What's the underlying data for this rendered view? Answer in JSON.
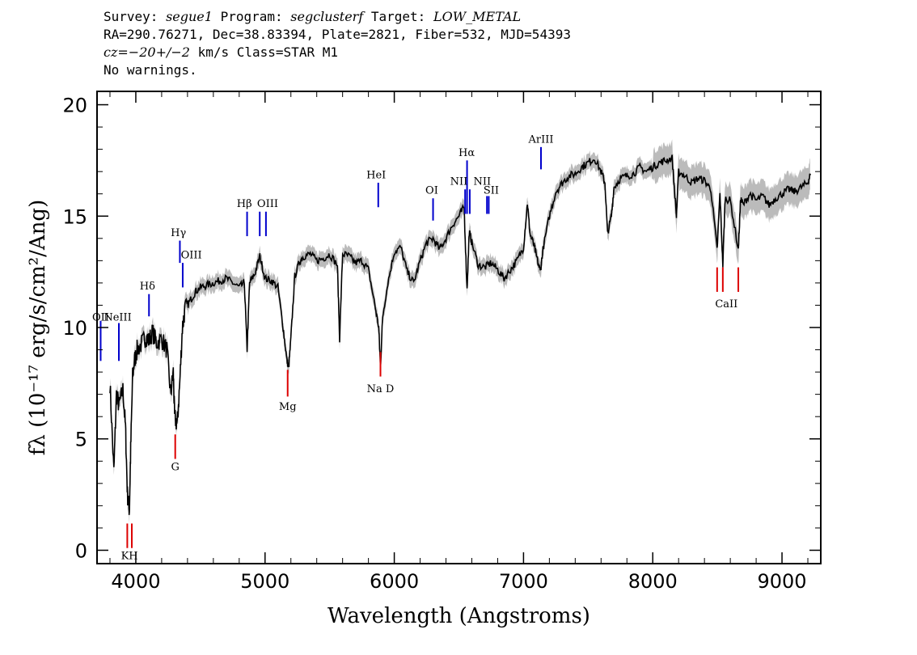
{
  "header": {
    "line1_survey_label": "Survey: ",
    "line1_survey": "segue1",
    "line1_program_label": " Program: ",
    "line1_program": "segclusterf",
    "line1_target_label": " Target: ",
    "line1_target": "LOW_METAL",
    "line2": "RA=290.76271, Dec=38.83394, Plate=2821, Fiber=532, MJD=54393",
    "line3_cz": "cz=−20+/−2",
    "line3_rest": " km/s Class=STAR M1",
    "line4": "No warnings."
  },
  "colors": {
    "flux": "#000000",
    "error": "#bbbbbb",
    "emission": "#0000cc",
    "absorption": "#dd0000",
    "frame": "#000000"
  },
  "chart_data": {
    "type": "line",
    "xlabel": "Wavelength (Angstroms)",
    "ylabel": "fλ (10⁻¹⁷ erg/s/cm²/Ang)",
    "xlim": [
      3700,
      9300
    ],
    "ylim": [
      -0.6,
      20.6
    ],
    "xticks": [
      4000,
      5000,
      6000,
      7000,
      8000,
      9000
    ],
    "yticks": [
      0,
      5,
      10,
      15,
      20
    ],
    "series": [
      {
        "x": [
          3800,
          3830,
          3850,
          3870,
          3900,
          3920,
          3935,
          3950,
          3960,
          3975,
          3990,
          4010,
          4050,
          4080,
          4100,
          4130,
          4160,
          4200,
          4240,
          4270,
          4290,
          4300,
          4320,
          4340,
          4360,
          4380,
          4420,
          4460,
          4500,
          4550,
          4600,
          4650,
          4700,
          4750,
          4800,
          4840,
          4861,
          4880,
          4920,
          4960,
          5000,
          5050,
          5100,
          5140,
          5170,
          5183,
          5200,
          5230,
          5270,
          5300,
          5350,
          5400,
          5450,
          5500,
          5560,
          5577,
          5600,
          5650,
          5700,
          5750,
          5800,
          5850,
          5880,
          5893,
          5910,
          5950,
          6000,
          6050,
          6100,
          6150,
          6200,
          6250,
          6300,
          6350,
          6400,
          6450,
          6500,
          6540,
          6563,
          6580,
          6600,
          6650,
          6700,
          6750,
          6800,
          6850,
          6900,
          6950,
          7000,
          7030,
          7050,
          7080,
          7100,
          7130,
          7150,
          7200,
          7250,
          7300,
          7350,
          7400,
          7450,
          7500,
          7550,
          7600,
          7630,
          7650,
          7680,
          7700,
          7750,
          7800,
          7850,
          7900,
          7950,
          8000,
          8050,
          8100,
          8150,
          8183,
          8200,
          8250,
          8300,
          8350,
          8400,
          8450,
          8498,
          8520,
          8542,
          8560,
          8600,
          8662,
          8680,
          8700,
          8750,
          8800,
          8850,
          8900,
          8950,
          9000,
          9050,
          9100,
          9150,
          9200,
          9220
        ],
        "values": [
          7.5,
          3.5,
          7.0,
          6.5,
          7.2,
          5.5,
          2.5,
          1.8,
          4.5,
          7.8,
          8.5,
          9.0,
          9.3,
          9.6,
          9.4,
          9.8,
          9.3,
          9.5,
          9.0,
          7.0,
          8.0,
          6.0,
          5.6,
          7.5,
          10.0,
          10.8,
          11.2,
          11.6,
          11.8,
          11.9,
          12.0,
          12.1,
          12.2,
          12.0,
          11.8,
          12.0,
          9.0,
          12.0,
          12.4,
          13.2,
          12.2,
          12.1,
          11.8,
          10.0,
          8.5,
          8.2,
          9.5,
          12.3,
          13.0,
          13.2,
          13.3,
          13.0,
          13.1,
          13.3,
          12.8,
          9.5,
          13.3,
          13.2,
          12.9,
          13.0,
          12.6,
          11.0,
          10.0,
          8.2,
          10.5,
          12.0,
          13.4,
          13.6,
          12.5,
          12.0,
          13.0,
          13.8,
          14.0,
          13.5,
          14.0,
          14.6,
          15.0,
          15.4,
          11.7,
          14.3,
          13.8,
          12.8,
          12.7,
          12.9,
          12.6,
          12.2,
          12.6,
          13.0,
          13.6,
          15.6,
          14.2,
          13.7,
          13.2,
          12.5,
          13.5,
          15.0,
          16.1,
          16.5,
          16.8,
          16.9,
          17.2,
          17.4,
          17.6,
          17.0,
          16.5,
          14.2,
          15.0,
          16.3,
          16.7,
          16.8,
          16.9,
          17.2,
          17.0,
          17.2,
          17.4,
          17.5,
          17.6,
          15.0,
          17.0,
          16.8,
          16.5,
          16.7,
          16.6,
          16.2,
          13.5,
          16.0,
          12.8,
          15.8,
          15.7,
          13.5,
          15.8,
          15.5,
          16.0,
          15.7,
          15.9,
          15.5,
          15.8,
          16.0,
          16.2,
          16.1,
          16.3,
          16.5,
          16.9
        ]
      }
    ],
    "line_labels": [
      {
        "name": "OII",
        "x": 3728,
        "y_top": 10.3,
        "y_bot": 8.5,
        "kind": "emission"
      },
      {
        "name": "NeIII",
        "x": 3869,
        "y_top": 10.2,
        "y_bot": 8.5,
        "kind": "emission"
      },
      {
        "name": "K",
        "x": 3934,
        "y_top": 1.2,
        "y_bot": 0.1,
        "kind": "absorption"
      },
      {
        "name": "H",
        "x": 3969,
        "y_top": 1.2,
        "y_bot": 0.1,
        "kind": "absorption"
      },
      {
        "name": "Hδ",
        "x": 4102,
        "y_top": 11.5,
        "y_bot": 10.5,
        "kind": "emission"
      },
      {
        "name": "G",
        "x": 4305,
        "y_top": 5.2,
        "y_bot": 4.1,
        "kind": "absorption"
      },
      {
        "name": "Hγ",
        "x": 4341,
        "y_top": 13.9,
        "y_bot": 12.9,
        "kind": "emission"
      },
      {
        "name": "OIII",
        "x": 4363,
        "y_top": 12.9,
        "y_bot": 11.8,
        "kind": "emission"
      },
      {
        "name": "Hβ",
        "x": 4861,
        "y_top": 15.2,
        "y_bot": 14.1,
        "kind": "emission"
      },
      {
        "name": "OIII",
        "x": 4959,
        "y_top": 15.2,
        "y_bot": 14.1,
        "kind": "emission"
      },
      {
        "name": "OIII2",
        "x": 5007,
        "y_top": 15.2,
        "y_bot": 14.1,
        "kind": "emission"
      },
      {
        "name": "Mg",
        "x": 5175,
        "y_top": 8.1,
        "y_bot": 6.9,
        "kind": "absorption"
      },
      {
        "name": "HeI",
        "x": 5876,
        "y_top": 16.5,
        "y_bot": 15.4,
        "kind": "emission"
      },
      {
        "name": "Na D",
        "x": 5893,
        "y_top": 8.9,
        "y_bot": 7.8,
        "kind": "absorption"
      },
      {
        "name": "OI",
        "x": 6300,
        "y_top": 15.8,
        "y_bot": 14.8,
        "kind": "emission"
      },
      {
        "name": "NII",
        "x": 6548,
        "y_top": 16.2,
        "y_bot": 15.1,
        "kind": "emission"
      },
      {
        "name": "Hα",
        "x": 6563,
        "y_top": 17.5,
        "y_bot": 15.1,
        "kind": "emission"
      },
      {
        "name": "NII",
        "x": 6584,
        "y_top": 16.2,
        "y_bot": 15.1,
        "kind": "emission"
      },
      {
        "name": "SII",
        "x": 6717,
        "y_top": 15.9,
        "y_bot": 15.1,
        "kind": "emission"
      },
      {
        "name": "SII2",
        "x": 6731,
        "y_top": 15.9,
        "y_bot": 15.1,
        "kind": "emission"
      },
      {
        "name": "ArIII",
        "x": 7135,
        "y_top": 18.1,
        "y_bot": 17.1,
        "kind": "emission"
      },
      {
        "name": "CaII",
        "x": 8498,
        "y_top": 12.7,
        "y_bot": 11.6,
        "kind": "absorption"
      },
      {
        "name": "CaII2",
        "x": 8542,
        "y_top": 12.7,
        "y_bot": 11.6,
        "kind": "absorption"
      },
      {
        "name": "CaII3",
        "x": 8662,
        "y_top": 12.7,
        "y_bot": 11.6,
        "kind": "absorption"
      }
    ],
    "printed_labels": [
      {
        "text": "OII",
        "x": 3728,
        "y": 10.3
      },
      {
        "text": "NeIII",
        "x": 3860,
        "y": 10.3
      },
      {
        "text": "KH",
        "x": 3951,
        "y": -0.4
      },
      {
        "text": "Hδ",
        "x": 4090,
        "y": 11.7
      },
      {
        "text": "G",
        "x": 4305,
        "y": 3.6
      },
      {
        "text": "Hγ",
        "x": 4330,
        "y": 14.1
      },
      {
        "text": "OIII",
        "x": 4430,
        "y": 13.1
      },
      {
        "text": "Hβ",
        "x": 4840,
        "y": 15.4
      },
      {
        "text": "OIII",
        "x": 5020,
        "y": 15.4
      },
      {
        "text": "Mg",
        "x": 5175,
        "y": 6.3
      },
      {
        "text": "HeI",
        "x": 5860,
        "y": 16.7
      },
      {
        "text": "Na D",
        "x": 5893,
        "y": 7.1
      },
      {
        "text": "OI",
        "x": 6290,
        "y": 16.0
      },
      {
        "text": "NII",
        "x": 6500,
        "y": 16.4
      },
      {
        "text": "Hα",
        "x": 6560,
        "y": 17.7
      },
      {
        "text": "NII",
        "x": 6680,
        "y": 16.4
      },
      {
        "text": "SII",
        "x": 6750,
        "y": 16.0
      },
      {
        "text": "ArIII",
        "x": 7135,
        "y": 18.3
      },
      {
        "text": "CaII",
        "x": 8570,
        "y": 10.9
      }
    ]
  }
}
